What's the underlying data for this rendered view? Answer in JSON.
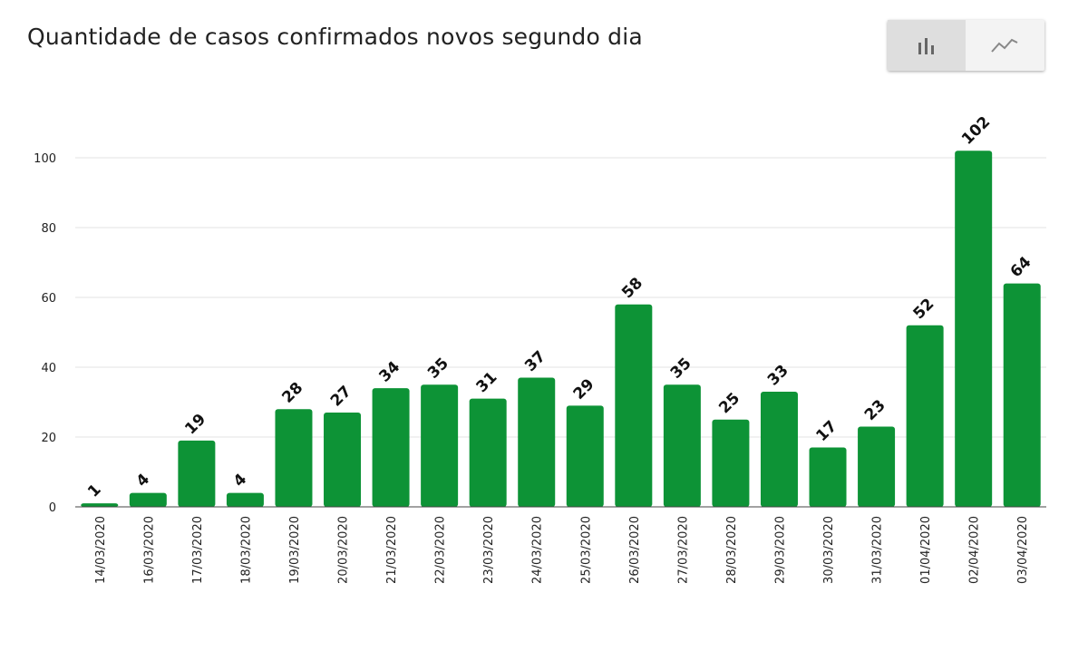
{
  "title": "Quantidade de casos confirmados novos segundo dia",
  "toggle": {
    "bar_icon": "bar-chart-icon",
    "line_icon": "line-chart-icon",
    "active": "bar"
  },
  "colors": {
    "bar": "#0d9336",
    "grid": "#e3e3e3",
    "axis": "#444444"
  },
  "chart_data": {
    "type": "bar",
    "title": "Quantidade de casos confirmados novos segundo dia",
    "xlabel": "",
    "ylabel": "",
    "ylim": [
      0,
      100
    ],
    "yticks": [
      0,
      20,
      40,
      60,
      80,
      100
    ],
    "grid": true,
    "categories": [
      "14/03/2020",
      "16/03/2020",
      "17/03/2020",
      "18/03/2020",
      "19/03/2020",
      "20/03/2020",
      "21/03/2020",
      "22/03/2020",
      "23/03/2020",
      "24/03/2020",
      "25/03/2020",
      "26/03/2020",
      "27/03/2020",
      "28/03/2020",
      "29/03/2020",
      "30/03/2020",
      "31/03/2020",
      "01/04/2020",
      "02/04/2020",
      "03/04/2020"
    ],
    "values": [
      1,
      4,
      19,
      4,
      28,
      27,
      34,
      35,
      31,
      37,
      29,
      58,
      35,
      25,
      33,
      17,
      23,
      52,
      102,
      64
    ]
  }
}
